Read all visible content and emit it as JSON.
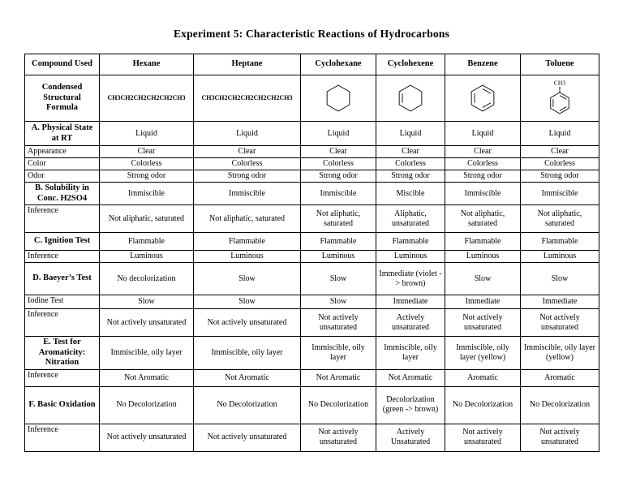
{
  "title": "Experiment 5: Characteristic Reactions of Hydrocarbons",
  "colors": {
    "ink": "#000000",
    "paper": "#ffffff"
  },
  "table": {
    "columns": [
      "Compound Used",
      "Hexane",
      "Heptane",
      "Cyclohexane",
      "Cyclohexene",
      "Benzene",
      "Toluene"
    ],
    "rows": [
      {
        "label": "Condensed Structural Formula",
        "bold": true,
        "cells": [
          {
            "type": "formula",
            "text": "CH3CH2CH2CH2CH2CH3"
          },
          {
            "type": "formula",
            "text": "CH3CH2CH2CH2CH2CH2CH3"
          },
          {
            "type": "structure",
            "shape": "cyclohexane"
          },
          {
            "type": "structure",
            "shape": "cyclohexene"
          },
          {
            "type": "structure",
            "shape": "benzene"
          },
          {
            "type": "structure",
            "shape": "toluene",
            "substituent": "CH3"
          }
        ]
      },
      {
        "label": "A. Physical State at RT",
        "bold": true,
        "cells": [
          "Liquid",
          "Liquid",
          "Liquid",
          "Liquid",
          "Liquid",
          "Liquid"
        ]
      },
      {
        "label": "Appearance",
        "bold": false,
        "cells": [
          "Clear",
          "Clear",
          "Clear",
          "Clear",
          "Clear",
          "Clear"
        ]
      },
      {
        "label": "Color",
        "bold": false,
        "cells": [
          "Colorless",
          "Colorless",
          "Colorless",
          "Colorless",
          "Colorless",
          "Colorless"
        ]
      },
      {
        "label": "Odor",
        "bold": false,
        "cells": [
          "Strong odor",
          "Strong odor",
          "Strong odor",
          "Strong odor",
          "Strong odor",
          "Strong odor"
        ]
      },
      {
        "label": "B. Solubility in Conc. H2SO4",
        "bold": true,
        "cells": [
          "Immiscible",
          "Immiscible",
          "Immiscible",
          "Miscible",
          "Immiscible",
          "Immiscible"
        ]
      },
      {
        "label": "Inference",
        "bold": false,
        "cells": [
          "Not aliphatic, saturated",
          "Not aliphatic, saturated",
          "Not aliphatic, saturated",
          "Aliphatic, unsaturated",
          "Not aliphatic, saturated",
          "Not aliphatic, saturated"
        ]
      },
      {
        "label": "C. Ignition Test",
        "bold": true,
        "cells": [
          "Flammable",
          "Flammable",
          "Flammable",
          "Flammable",
          "Flammable",
          "Flammable"
        ]
      },
      {
        "label": "Inference",
        "bold": false,
        "cells": [
          "Luminous",
          "Luminous",
          "Luminous",
          "Luminous",
          "Luminous",
          "Luminous"
        ]
      },
      {
        "label": "D. Baeyer’s Test",
        "bold": true,
        "cells": [
          "No decolorization",
          "Slow",
          "Slow",
          "Immediate (violet -> brown)",
          "Slow",
          "Slow"
        ]
      },
      {
        "label": "Iodine Test",
        "bold": false,
        "cells": [
          "Slow",
          "Slow",
          "Slow",
          "Immediate",
          "Immediate",
          "Immediate"
        ]
      },
      {
        "label": "Inference",
        "bold": false,
        "cells": [
          "Not actively unsaturated",
          "Not actively unsaturated",
          "Not actively unsaturated",
          "Actively unsaturated",
          "Not actively unsaturated",
          "Not actively unsaturated"
        ]
      },
      {
        "label": "E. Test for Aromaticity: Nitration",
        "bold": true,
        "cells": [
          "Immiscible, oily layer",
          "Immiscible, oily layer",
          "Immiscible, oily layer",
          "Immiscible, oily layer",
          "Immiscible, oily layer (yellow)",
          "Immiscible, oily layer (yellow)"
        ]
      },
      {
        "label": "Inference",
        "bold": false,
        "cells": [
          "Not Aromatic",
          "Not Aromatic",
          "Not Aromatic",
          "Not Aromatic",
          "Aromatic",
          "Aromatic"
        ]
      },
      {
        "label": "F. Basic Oxidation",
        "bold": true,
        "cells": [
          "No Decolorization",
          "No Decolorization",
          "No Decolorization",
          "Decolorization (green -> brown)",
          "No Decolorization",
          "No Decolorization"
        ]
      },
      {
        "label": "Inference",
        "bold": false,
        "cells": [
          "Not actively unsaturated",
          "Not actively unsaturated",
          "Not actively unsaturated",
          "Actively Unsaturated",
          "Not actively unsaturated",
          "Not actively unsaturated"
        ]
      }
    ]
  }
}
